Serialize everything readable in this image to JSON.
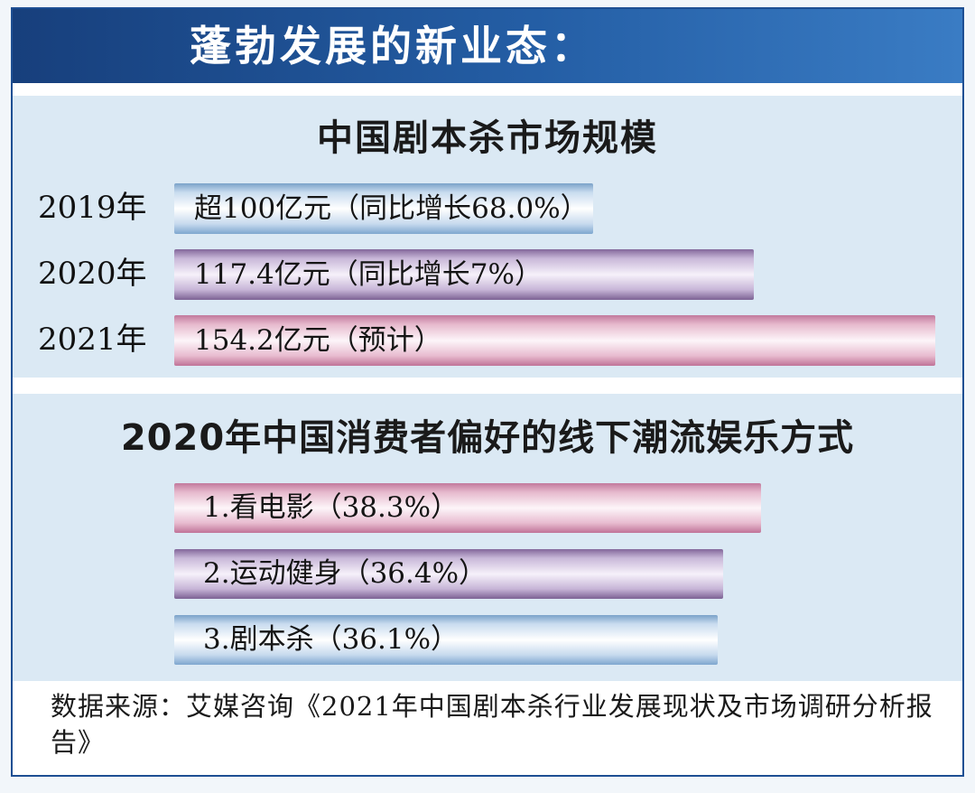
{
  "header": {
    "title": "蓬勃发展的新业态："
  },
  "chart_data": [
    {
      "type": "bar",
      "orientation": "horizontal",
      "title": "中国剧本杀市场规模",
      "unit": "亿元",
      "categories": [
        "2019年",
        "2020年",
        "2021年"
      ],
      "values": [
        100,
        117.4,
        154.2
      ],
      "labels": [
        "超100亿元（同比增长68.0%）",
        "117.4亿元（同比增长7%）",
        "154.2亿元（预计）"
      ],
      "colors": [
        "#a9c6e4",
        "#b9a3cf",
        "#dca3bf"
      ]
    },
    {
      "type": "bar",
      "orientation": "horizontal",
      "title": "2020年中国消费者偏好的线下潮流娱乐方式",
      "unit": "%",
      "categories": [
        "看电影",
        "运动健身",
        "剧本杀"
      ],
      "values": [
        38.3,
        36.4,
        36.1
      ],
      "labels": [
        "1.看电影（38.3%）",
        "2.运动健身（36.4%）",
        "3.剧本杀（36.1%）"
      ],
      "colors": [
        "#dca3bf",
        "#b9a3cf",
        "#a9c6e4"
      ]
    }
  ],
  "source": "数据来源：艾媒咨询《2021年中国剧本杀行业发展现状及市场调研分析报告》"
}
